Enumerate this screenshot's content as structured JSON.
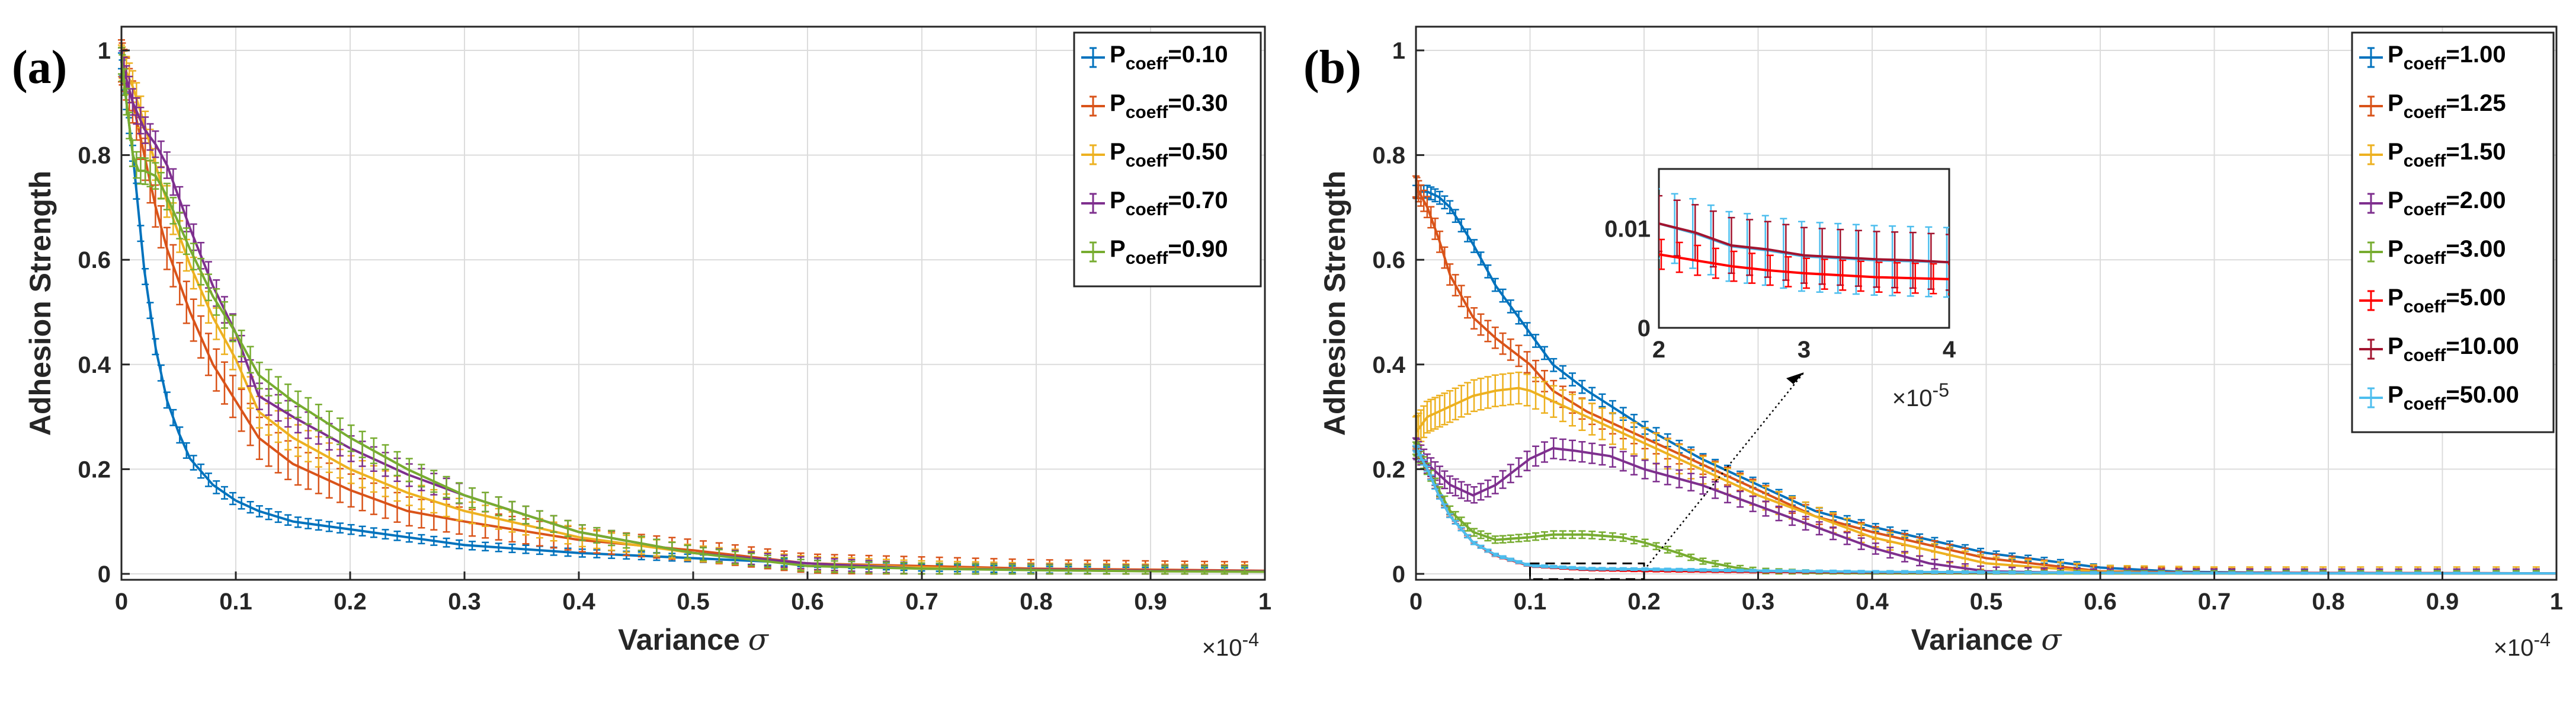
{
  "chart_data": [
    {
      "panel_label": "(a)",
      "type": "line",
      "title": "",
      "xlabel": "Variance",
      "xlabel_symbol": "σ",
      "ylabel": "Adhesion Strength",
      "x_multiplier": "×10",
      "x_exponent": "-4",
      "xlim": [
        0,
        1
      ],
      "ylim": [
        0,
        1
      ],
      "xticks": [
        "0",
        "0.1",
        "0.2",
        "0.3",
        "0.4",
        "0.5",
        "0.6",
        "0.7",
        "0.8",
        "0.9",
        "1"
      ],
      "yticks": [
        "0",
        "0.2",
        "0.4",
        "0.6",
        "0.8",
        "1"
      ],
      "legend_position": "top-right",
      "series": [
        {
          "name": "P",
          "sub": "coeff",
          "suffix": "=0.10",
          "color": "#0072BD",
          "x": [
            0,
            0.01,
            0.02,
            0.03,
            0.04,
            0.05,
            0.06,
            0.08,
            0.1,
            0.12,
            0.15,
            0.2,
            0.25,
            0.3,
            0.4,
            0.5,
            0.6,
            0.7,
            0.8,
            0.9,
            1.0
          ],
          "y": [
            0.98,
            0.8,
            0.58,
            0.43,
            0.33,
            0.27,
            0.22,
            0.17,
            0.14,
            0.12,
            0.1,
            0.085,
            0.07,
            0.055,
            0.04,
            0.03,
            0.02,
            0.012,
            0.008,
            0.006,
            0.005
          ],
          "err": 0.015
        },
        {
          "name": "P",
          "sub": "coeff",
          "suffix": "=0.30",
          "color": "#D95319",
          "x": [
            0,
            0.01,
            0.02,
            0.03,
            0.04,
            0.06,
            0.08,
            0.1,
            0.12,
            0.15,
            0.2,
            0.25,
            0.3,
            0.4,
            0.5,
            0.6,
            0.7,
            0.8,
            0.9,
            1.0
          ],
          "y": [
            0.98,
            0.9,
            0.8,
            0.7,
            0.62,
            0.5,
            0.4,
            0.33,
            0.26,
            0.21,
            0.16,
            0.12,
            0.1,
            0.065,
            0.045,
            0.02,
            0.015,
            0.01,
            0.008,
            0.006
          ],
          "err": 0.04
        },
        {
          "name": "P",
          "sub": "coeff",
          "suffix": "=0.50",
          "color": "#EDB120",
          "x": [
            0,
            0.01,
            0.02,
            0.03,
            0.04,
            0.06,
            0.08,
            0.1,
            0.12,
            0.15,
            0.2,
            0.25,
            0.3,
            0.4,
            0.5,
            0.6,
            0.7,
            0.8,
            0.9,
            1.0
          ],
          "y": [
            0.98,
            0.93,
            0.86,
            0.78,
            0.71,
            0.59,
            0.49,
            0.41,
            0.31,
            0.26,
            0.2,
            0.155,
            0.12,
            0.07,
            0.04,
            0.02,
            0.012,
            0.008,
            0.006,
            0.005
          ],
          "err": 0.03
        },
        {
          "name": "P",
          "sub": "coeff",
          "suffix": "=0.70",
          "color": "#7E2F8E",
          "x": [
            0,
            0.01,
            0.02,
            0.03,
            0.04,
            0.06,
            0.08,
            0.1,
            0.12,
            0.15,
            0.2,
            0.25,
            0.3,
            0.4,
            0.5,
            0.6,
            0.7,
            0.8,
            0.9,
            1.0
          ],
          "y": [
            0.98,
            0.9,
            0.85,
            0.82,
            0.78,
            0.66,
            0.55,
            0.46,
            0.34,
            0.3,
            0.24,
            0.19,
            0.15,
            0.08,
            0.04,
            0.02,
            0.01,
            0.008,
            0.006,
            0.005
          ],
          "err": 0.025
        },
        {
          "name": "P",
          "sub": "coeff",
          "suffix": "=0.90",
          "color": "#77AC30",
          "x": [
            0,
            0.01,
            0.015,
            0.02,
            0.03,
            0.04,
            0.06,
            0.08,
            0.1,
            0.12,
            0.15,
            0.2,
            0.25,
            0.3,
            0.4,
            0.5,
            0.6,
            0.7,
            0.8,
            0.9,
            1.0
          ],
          "y": [
            0.98,
            0.8,
            0.77,
            0.77,
            0.76,
            0.72,
            0.62,
            0.53,
            0.46,
            0.38,
            0.33,
            0.26,
            0.2,
            0.15,
            0.08,
            0.04,
            0.015,
            0.01,
            0.007,
            0.005,
            0.004
          ],
          "err": 0.025
        }
      ]
    },
    {
      "panel_label": "(b)",
      "type": "line",
      "title": "",
      "xlabel": "Variance",
      "xlabel_symbol": "σ",
      "ylabel": "Adhesion Strength",
      "x_multiplier": "×10",
      "x_exponent": "-4",
      "xlim": [
        0,
        1
      ],
      "ylim": [
        0,
        1
      ],
      "xticks": [
        "0",
        "0.1",
        "0.2",
        "0.3",
        "0.4",
        "0.5",
        "0.6",
        "0.7",
        "0.8",
        "0.9",
        "1"
      ],
      "yticks": [
        "0",
        "0.2",
        "0.4",
        "0.6",
        "0.8",
        "1"
      ],
      "legend_position": "top-right",
      "series": [
        {
          "name": "P",
          "sub": "coeff",
          "suffix": "=1.00",
          "color": "#0072BD",
          "x": [
            0,
            0.01,
            0.02,
            0.03,
            0.05,
            0.07,
            0.1,
            0.12,
            0.15,
            0.2,
            0.25,
            0.3,
            0.35,
            0.4,
            0.5,
            0.6,
            0.67,
            0.75,
            0.85,
            1.0
          ],
          "y": [
            0.73,
            0.73,
            0.72,
            0.7,
            0.63,
            0.55,
            0.46,
            0.4,
            0.35,
            0.28,
            0.22,
            0.17,
            0.12,
            0.09,
            0.04,
            0.012,
            0.004,
            0.002,
            0.001,
            0.001
          ],
          "err": 0.012
        },
        {
          "name": "P",
          "sub": "coeff",
          "suffix": "=1.25",
          "color": "#D95319",
          "x": [
            0,
            0.01,
            0.02,
            0.03,
            0.05,
            0.07,
            0.1,
            0.12,
            0.15,
            0.2,
            0.25,
            0.3,
            0.35,
            0.4,
            0.5,
            0.6,
            0.7,
            0.8,
            1.0
          ],
          "y": [
            0.74,
            0.7,
            0.64,
            0.57,
            0.49,
            0.45,
            0.4,
            0.35,
            0.31,
            0.26,
            0.21,
            0.16,
            0.11,
            0.08,
            0.03,
            0.005,
            0.002,
            0.001,
            0.001
          ],
          "err": 0.02
        },
        {
          "name": "P",
          "sub": "coeff",
          "suffix": "=1.50",
          "color": "#EDB120",
          "x": [
            0,
            0.01,
            0.02,
            0.03,
            0.05,
            0.07,
            0.09,
            0.1,
            0.12,
            0.15,
            0.2,
            0.25,
            0.3,
            0.35,
            0.4,
            0.5,
            0.6,
            0.7,
            1.0
          ],
          "y": [
            0.27,
            0.3,
            0.31,
            0.32,
            0.34,
            0.35,
            0.355,
            0.35,
            0.33,
            0.3,
            0.25,
            0.2,
            0.15,
            0.11,
            0.07,
            0.02,
            0.004,
            0.001,
            0.001
          ],
          "err": 0.03
        },
        {
          "name": "P",
          "sub": "coeff",
          "suffix": "=2.00",
          "color": "#7E2F8E",
          "x": [
            0,
            0.01,
            0.02,
            0.03,
            0.05,
            0.07,
            0.1,
            0.12,
            0.14,
            0.17,
            0.2,
            0.25,
            0.3,
            0.35,
            0.4,
            0.45,
            0.5,
            0.6,
            1.0
          ],
          "y": [
            0.24,
            0.21,
            0.19,
            0.17,
            0.15,
            0.17,
            0.22,
            0.24,
            0.235,
            0.225,
            0.2,
            0.17,
            0.13,
            0.09,
            0.05,
            0.02,
            0.005,
            0.001,
            0.001
          ],
          "err": 0.02
        },
        {
          "name": "P",
          "sub": "coeff",
          "suffix": "=3.00",
          "color": "#77AC30",
          "x": [
            0,
            0.01,
            0.02,
            0.03,
            0.05,
            0.07,
            0.1,
            0.12,
            0.15,
            0.18,
            0.2,
            0.23,
            0.25,
            0.28,
            0.3,
            0.35,
            0.4,
            1.0
          ],
          "y": [
            0.24,
            0.2,
            0.16,
            0.12,
            0.08,
            0.065,
            0.07,
            0.075,
            0.075,
            0.07,
            0.06,
            0.04,
            0.025,
            0.012,
            0.006,
            0.002,
            0.001,
            0.001
          ],
          "err": 0.012
        },
        {
          "name": "P",
          "sub": "coeff",
          "suffix": "=5.00",
          "color": "#FF0000",
          "x": [
            0,
            0.01,
            0.02,
            0.03,
            0.05,
            0.07,
            0.1,
            0.15,
            0.2,
            0.3,
            0.4,
            1.0
          ],
          "y": [
            0.24,
            0.2,
            0.15,
            0.11,
            0.06,
            0.035,
            0.015,
            0.008,
            0.006,
            0.004,
            0.003,
            0.001
          ],
          "err": 0.004
        },
        {
          "name": "P",
          "sub": "coeff",
          "suffix": "=10.00",
          "color": "#A2142F",
          "x": [
            0,
            0.01,
            0.02,
            0.03,
            0.05,
            0.07,
            0.1,
            0.15,
            0.2,
            0.3,
            0.4,
            1.0
          ],
          "y": [
            0.24,
            0.2,
            0.15,
            0.11,
            0.06,
            0.036,
            0.016,
            0.009,
            0.008,
            0.005,
            0.003,
            0.001
          ],
          "err": 0.004
        },
        {
          "name": "P",
          "sub": "coeff",
          "suffix": "=50.00",
          "color": "#4DBEEE",
          "x": [
            0,
            0.01,
            0.02,
            0.03,
            0.05,
            0.07,
            0.1,
            0.15,
            0.2,
            0.3,
            0.4,
            0.6,
            0.8,
            1.0
          ],
          "y": [
            0.24,
            0.2,
            0.15,
            0.11,
            0.06,
            0.036,
            0.016,
            0.01,
            0.009,
            0.006,
            0.004,
            0.002,
            0.001,
            0.001
          ],
          "err": 0.005
        }
      ],
      "inset": {
        "xlim": [
          2,
          4
        ],
        "ylim": [
          0,
          0.016
        ],
        "xticks": [
          "2",
          "3",
          "4"
        ],
        "yticks": [
          "0",
          "0.01"
        ],
        "x_multiplier": "×10",
        "x_exponent": "-5",
        "zoom_region_x": [
          0.1,
          0.2
        ],
        "zoom_region_y": [
          -0.01,
          0.02
        ],
        "series": [
          {
            "color": "#4DBEEE",
            "x": [
              2,
              2.25,
              2.5,
              2.75,
              3,
              3.25,
              3.5,
              3.75,
              4
            ],
            "y": [
              0.0105,
              0.0095,
              0.0082,
              0.0078,
              0.0072,
              0.007,
              0.0068,
              0.0067,
              0.0066
            ],
            "err": 0.0035
          },
          {
            "color": "#A2142F",
            "x": [
              2,
              2.25,
              2.5,
              2.75,
              3,
              3.25,
              3.5,
              3.75,
              4
            ],
            "y": [
              0.0105,
              0.0096,
              0.0083,
              0.0079,
              0.0073,
              0.0071,
              0.0069,
              0.0068,
              0.0066
            ],
            "err": 0.0028
          },
          {
            "color": "#FF0000",
            "x": [
              2,
              2.25,
              2.5,
              2.75,
              3,
              3.25,
              3.5,
              3.75,
              4
            ],
            "y": [
              0.0074,
              0.0068,
              0.0062,
              0.0058,
              0.0055,
              0.0053,
              0.0051,
              0.005,
              0.0049
            ],
            "err": 0.0015
          }
        ]
      }
    }
  ]
}
